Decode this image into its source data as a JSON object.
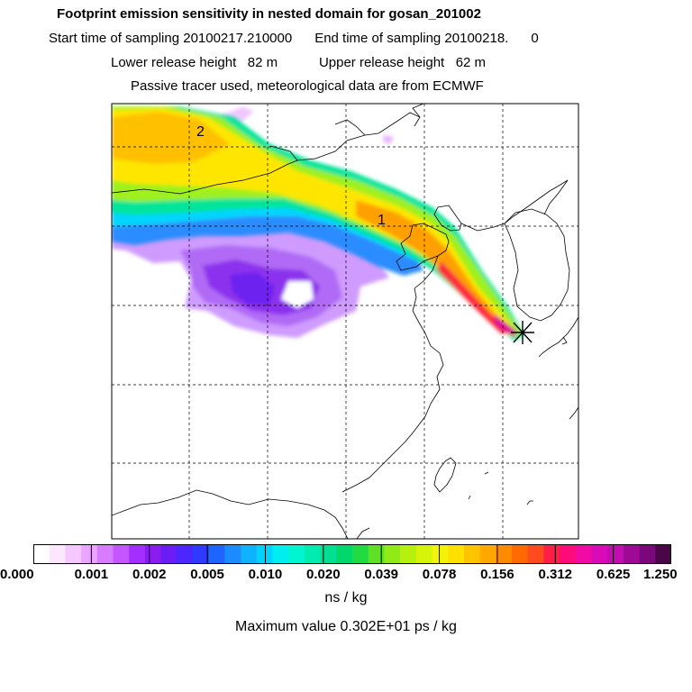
{
  "header": {
    "title": "Footprint emission sensitivity in nested domain for gosan_201002",
    "sampling": "Start time of sampling 20100217.210000      End time of sampling 20100218.      0",
    "release": "Lower release height   82 m           Upper release height   62 m",
    "tracer": "Passive tracer used, meteorological data are from ECMWF"
  },
  "map": {
    "labels": [
      "2",
      "1"
    ],
    "receptor_marker": "star-marker"
  },
  "colorbar": {
    "ticks": [
      "0.000",
      "0.001",
      "0.002",
      "0.005",
      "0.010",
      "0.020",
      "0.039",
      "0.078",
      "0.156",
      "0.312",
      "0.625",
      "1.250"
    ],
    "unit": "ns / kg",
    "colors": [
      "#ffffff",
      "#fde6ff",
      "#f5c8ff",
      "#eaa6ff",
      "#d77cff",
      "#c455ff",
      "#a32eff",
      "#8a1cf0",
      "#6a1ef5",
      "#4b26ff",
      "#2e3bff",
      "#1f64ff",
      "#1b8cff",
      "#0fb2ff",
      "#00d2ff",
      "#00eef0",
      "#00f5d0",
      "#00ebb0",
      "#00e090",
      "#00d86c",
      "#21d940",
      "#5ee024",
      "#8fea16",
      "#b6f00f",
      "#d6f40a",
      "#f3f20a",
      "#ffe000",
      "#ffc400",
      "#ffa800",
      "#ff8a00",
      "#ff6a00",
      "#ff4a20",
      "#ff1f46",
      "#ff0a7a",
      "#f20aa6",
      "#d90ab8",
      "#c20eb0",
      "#9e0a96",
      "#7a087a",
      "#4a0646"
    ]
  },
  "footer": {
    "max_value": "Maximum value  0.302E+01 ps / kg"
  }
}
